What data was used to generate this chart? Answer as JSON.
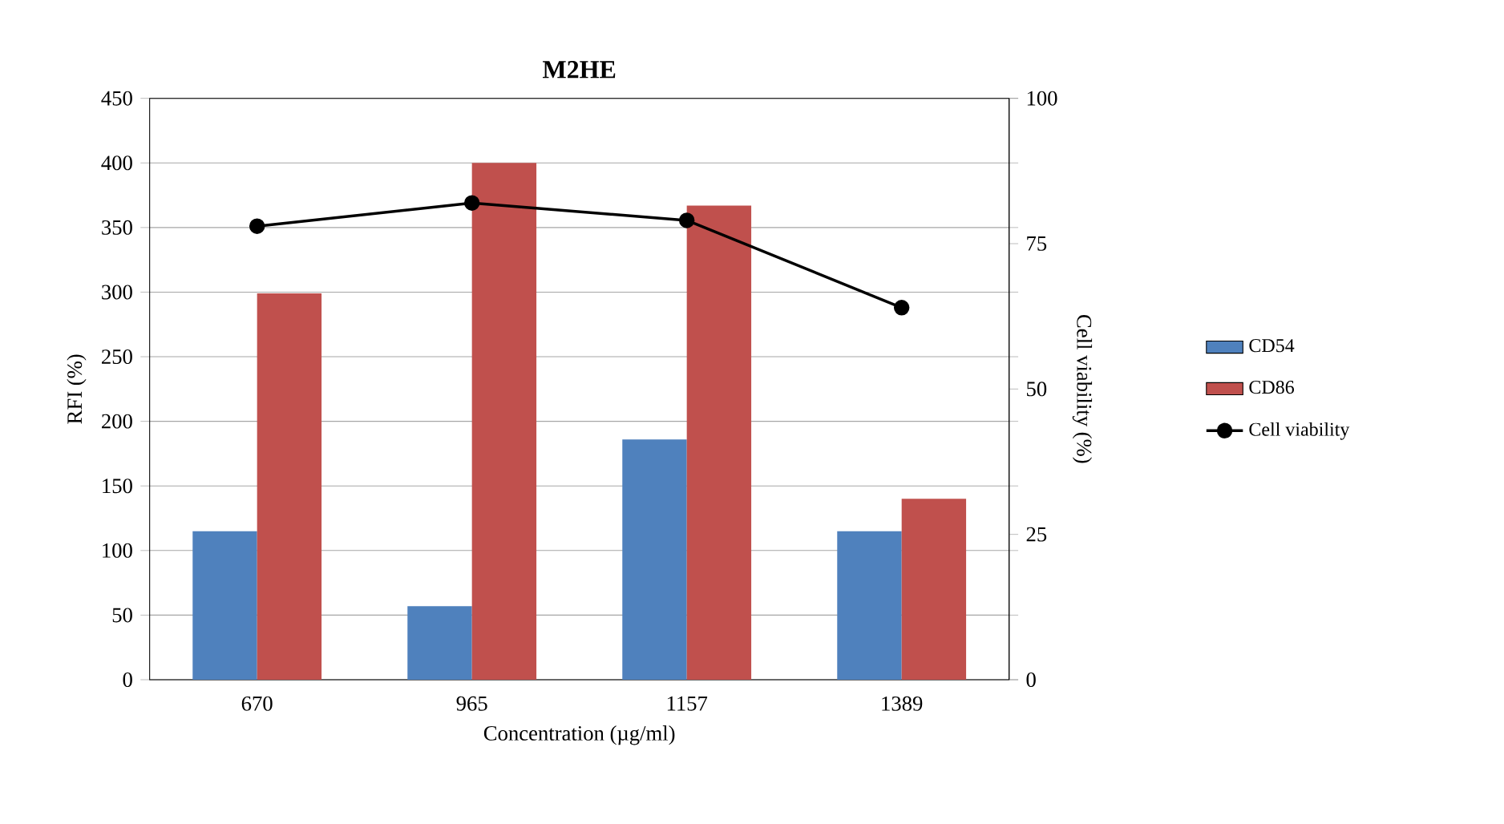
{
  "chart_data": {
    "type": "bar",
    "title": "M2HE",
    "xlabel": "Concentration (µg/ml)",
    "ylabel": "RFI (%)",
    "y2label": "Cell viability (%)",
    "categories": [
      "670",
      "965",
      "1157",
      "1389"
    ],
    "series": [
      {
        "name": "CD54",
        "color": "#4f81bd",
        "values": [
          115,
          57,
          186,
          115
        ]
      },
      {
        "name": "CD86",
        "color": "#c0504d",
        "values": [
          299,
          400,
          367,
          140
        ]
      },
      {
        "name": "Cell viability",
        "type": "line",
        "axis": "y2",
        "color": "#000000",
        "marker": "circle",
        "values": [
          78,
          82,
          79,
          64
        ]
      }
    ],
    "ylim": [
      0,
      450
    ],
    "yticks": [
      0,
      50,
      100,
      150,
      200,
      250,
      300,
      350,
      400,
      450
    ],
    "y2lim": [
      0,
      100
    ],
    "y2ticks": [
      0,
      25,
      50,
      75,
      100
    ],
    "grid": "y",
    "legend": "right"
  }
}
